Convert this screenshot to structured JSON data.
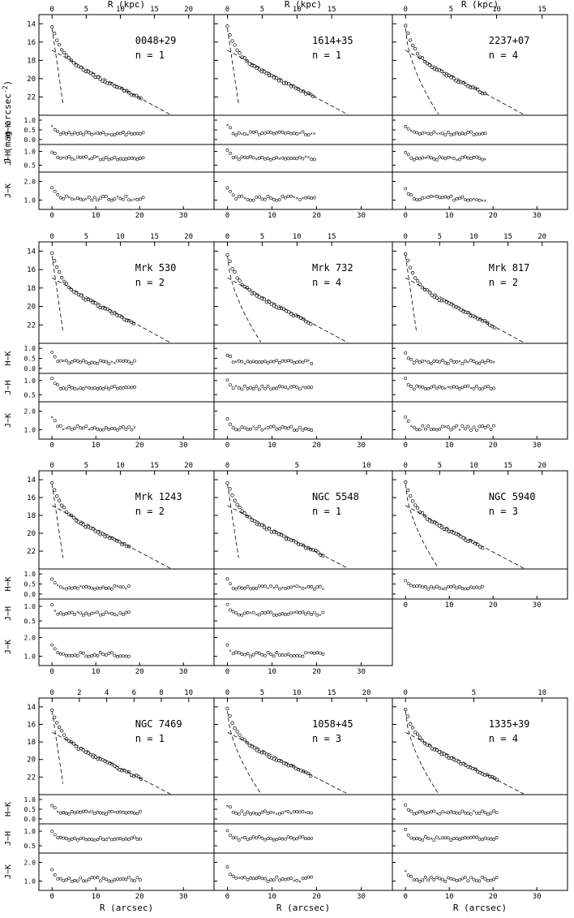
{
  "figure": {
    "top_axis_label": "R (kpc)",
    "bottom_axis_label": "R (arcsec)",
    "y_label_main": "J (mag arcsec",
    "y_label_main_sup": "-2",
    "y_label_main_close": ")",
    "y_label_hk": "H−K",
    "y_label_jh": "J−H",
    "y_label_jk": "J−K"
  },
  "chart_data": [
    {
      "type": "scatter",
      "name": "0048+29",
      "n_label": "n = 1",
      "n": 1,
      "kpc_max": 20,
      "kpc_ticks": [
        0,
        5,
        10,
        15,
        20
      ],
      "has_hk": true,
      "has_jh": true,
      "has_jk": true
    },
    {
      "type": "scatter",
      "name": "1614+35",
      "n_label": "n = 1",
      "n": 1,
      "kpc_max": 20,
      "kpc_ticks": [
        0,
        5,
        10,
        15
      ],
      "has_hk": true,
      "has_jh": true,
      "has_jk": true
    },
    {
      "type": "scatter",
      "name": "2237+07",
      "n_label": "n = 4",
      "n": 4,
      "kpc_max": 15,
      "kpc_ticks": [
        0,
        5,
        10,
        15
      ],
      "has_hk": true,
      "has_jh": true,
      "has_jk": true
    },
    {
      "type": "scatter",
      "name": "Mrk 530",
      "n_label": "n = 2",
      "n": 2,
      "kpc_max": 20,
      "kpc_ticks": [
        0,
        5,
        10,
        15,
        20
      ],
      "has_hk": true,
      "has_jh": true,
      "has_jk": true
    },
    {
      "type": "scatter",
      "name": "Mrk 732",
      "n_label": "n = 4",
      "n": 4,
      "kpc_max": 20,
      "kpc_ticks": [
        0,
        5,
        10,
        15
      ],
      "has_hk": true,
      "has_jh": true,
      "has_jk": true
    },
    {
      "type": "scatter",
      "name": "Mrk 817",
      "n_label": "n = 2",
      "n": 2,
      "kpc_max": 20,
      "kpc_ticks": [
        0,
        5,
        10,
        15,
        20
      ],
      "has_hk": true,
      "has_jh": true,
      "has_jk": true
    },
    {
      "type": "scatter",
      "name": "Mrk 1243",
      "n_label": "n = 2",
      "n": 2,
      "kpc_max": 20,
      "kpc_ticks": [
        0,
        5,
        10,
        15,
        20
      ],
      "has_hk": true,
      "has_jh": true,
      "has_jk": true
    },
    {
      "type": "scatter",
      "name": "NGC 5548",
      "n_label": "n = 1",
      "n": 1,
      "kpc_max": 10,
      "kpc_ticks": [
        0,
        5,
        10
      ],
      "has_hk": true,
      "has_jh": true,
      "has_jk": true
    },
    {
      "type": "scatter",
      "name": "NGC 5940",
      "n_label": "n = 3",
      "n": 3,
      "kpc_max": 20,
      "kpc_ticks": [
        0,
        5,
        10,
        15,
        20
      ],
      "has_hk": true,
      "has_jh": false,
      "has_jk": false
    },
    {
      "type": "scatter",
      "name": "NGC 7469",
      "n_label": "n = 1",
      "n": 1,
      "kpc_max": 10,
      "kpc_ticks": [
        0,
        2,
        4,
        6,
        8,
        10
      ],
      "has_hk": true,
      "has_jh": true,
      "has_jk": true
    },
    {
      "type": "scatter",
      "name": "1058+45",
      "n_label": "n = 3",
      "n": 3,
      "kpc_max": 20,
      "kpc_ticks": [
        0,
        5,
        10,
        15,
        20
      ],
      "has_hk": true,
      "has_jh": true,
      "has_jk": true
    },
    {
      "type": "scatter",
      "name": "1335+39",
      "n_label": "n = 4",
      "n": 4,
      "kpc_max": 10,
      "kpc_ticks": [
        0,
        5,
        10
      ],
      "has_hk": true,
      "has_jh": true,
      "has_jk": true
    }
  ],
  "axes": {
    "r_arcsec_ticks": [
      0,
      10,
      20,
      30
    ],
    "r_arcsec_range": [
      -3,
      37
    ],
    "j_ticks": [
      14,
      16,
      18,
      20,
      22
    ],
    "j_range": [
      13,
      24
    ],
    "hk_ticks": [
      "0.0",
      "0.5",
      "1.0"
    ],
    "jh_ticks": [
      "0.5",
      "1.0"
    ],
    "jk_ticks": [
      "1.0",
      "2.0"
    ]
  }
}
